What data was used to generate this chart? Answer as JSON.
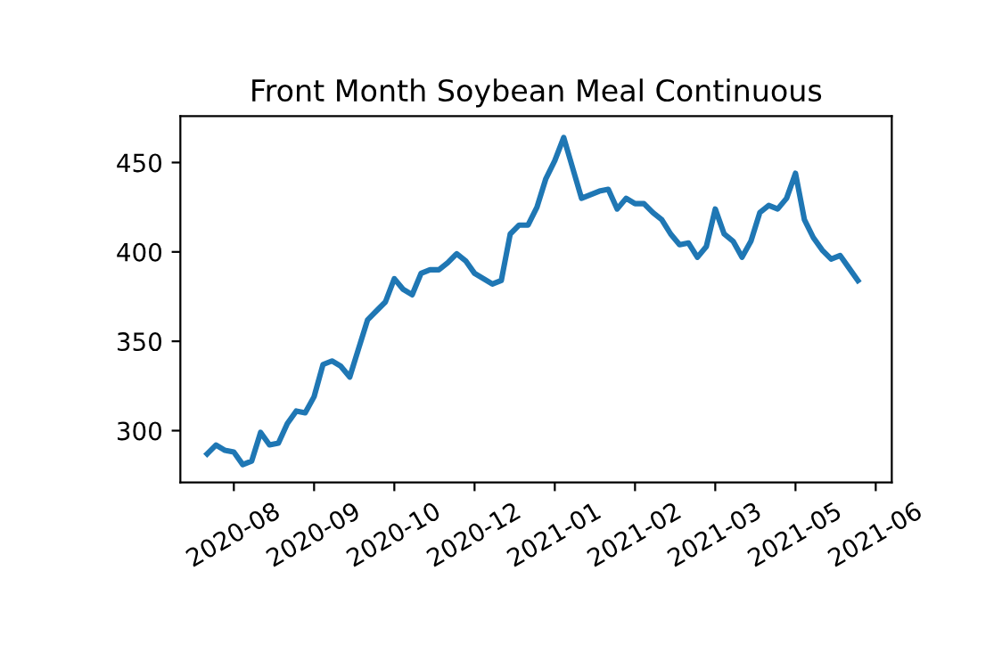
{
  "chart_data": {
    "type": "line",
    "title": "Front Month Soybean Meal Continuous",
    "categories": [
      null,
      null,
      null,
      "2020-08",
      null,
      null,
      null,
      null,
      null,
      null,
      null,
      null,
      "2020-09",
      null,
      null,
      null,
      null,
      null,
      null,
      null,
      null,
      "2020-10",
      null,
      null,
      null,
      null,
      null,
      null,
      null,
      null,
      "2020-12",
      null,
      null,
      null,
      null,
      null,
      null,
      null,
      null,
      "2021-01",
      null,
      null,
      null,
      null,
      null,
      null,
      null,
      null,
      "2021-02",
      null,
      null,
      null,
      null,
      null,
      null,
      null,
      null,
      "2021-03",
      null,
      null,
      null,
      null,
      null,
      null,
      null,
      null,
      "2021-05",
      null,
      null,
      null,
      null,
      null,
      null,
      null,
      null,
      "2021-06",
      null,
      null
    ],
    "series": [
      {
        "color": "#1f77b4",
        "values": [
          287,
          292,
          289,
          288,
          281,
          283,
          299,
          292,
          293,
          304,
          311,
          310,
          319,
          337,
          339,
          336,
          330,
          346,
          362,
          367,
          372,
          385,
          379,
          376,
          388,
          390,
          390,
          394,
          399,
          395,
          388,
          385,
          382,
          384,
          410,
          415,
          415,
          425,
          441,
          451,
          464,
          447,
          430,
          432,
          434,
          435,
          424,
          430,
          427,
          427,
          422,
          418,
          410,
          404,
          405,
          397,
          403,
          424,
          410,
          406,
          397,
          406,
          422,
          426,
          424,
          430,
          444,
          418,
          408,
          401,
          396,
          398,
          391,
          384,
          null,
          null,
          null,
          null
        ]
      }
    ],
    "ylim": [
      271,
      476
    ],
    "yticks": [
      300,
      350,
      400,
      450
    ],
    "grid": false
  }
}
